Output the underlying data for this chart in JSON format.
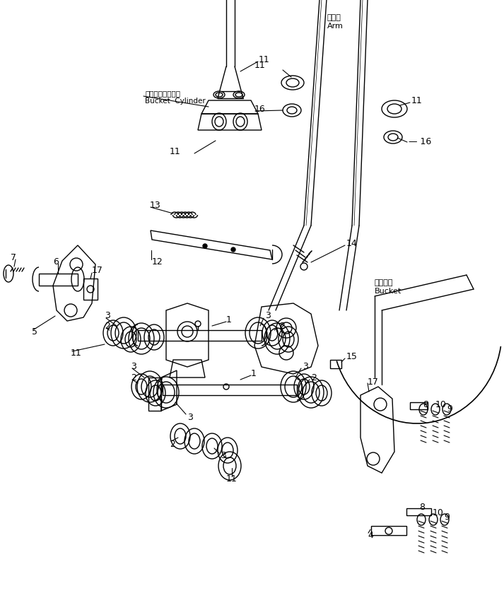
{
  "bg_color": "#ffffff",
  "line_color": "#000000",
  "annotations": {
    "bucket_cylinder_jp": "バケットシリンダ",
    "bucket_cylinder_en": "Bucket  Cylinder",
    "arm_jp": "アーム",
    "arm_en": "Arm",
    "bucket_jp": "バケット",
    "bucket_en": "Bucket"
  }
}
